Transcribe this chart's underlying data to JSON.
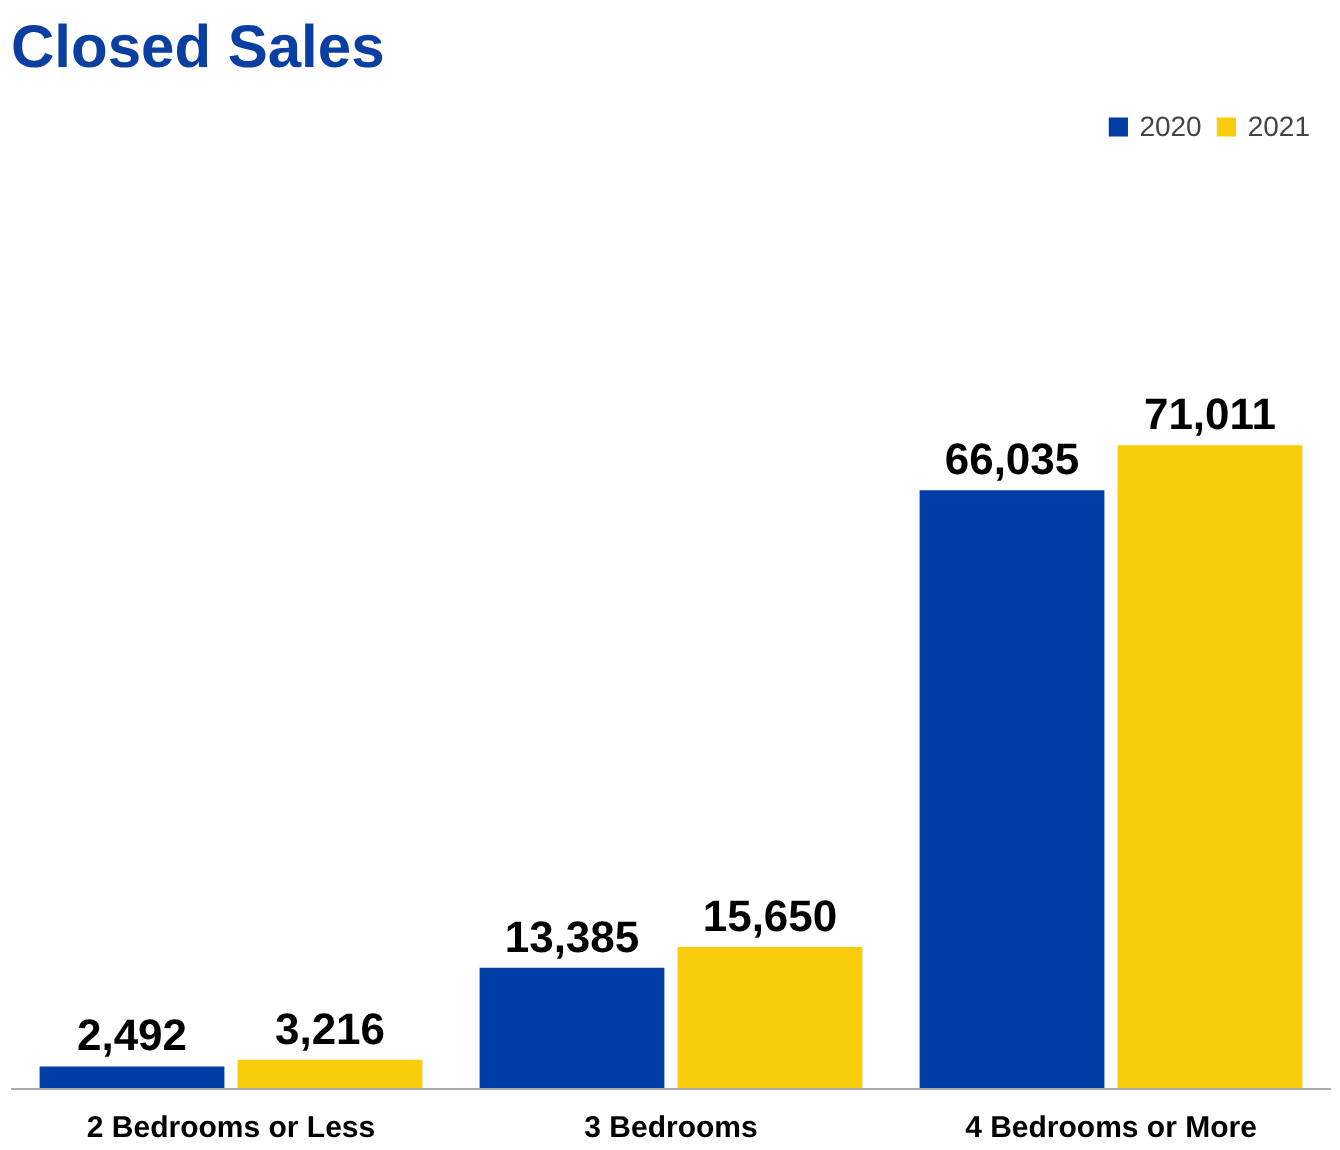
{
  "chart_data": {
    "type": "bar",
    "title": "Closed Sales",
    "categories": [
      "2 Bedrooms or Less",
      "3 Bedrooms",
      "4 Bedrooms or More"
    ],
    "series": [
      {
        "name": "2020",
        "color": "#003da5",
        "values": [
          2492,
          13385,
          66035
        ],
        "value_labels": [
          "2,492",
          "13,385",
          "66,035"
        ]
      },
      {
        "name": "2021",
        "color": "#f9cd0b",
        "values": [
          3216,
          15650,
          71011
        ],
        "value_labels": [
          "3,216",
          "15,650",
          "71,011"
        ]
      }
    ],
    "legend": "top right",
    "grid": false
  }
}
